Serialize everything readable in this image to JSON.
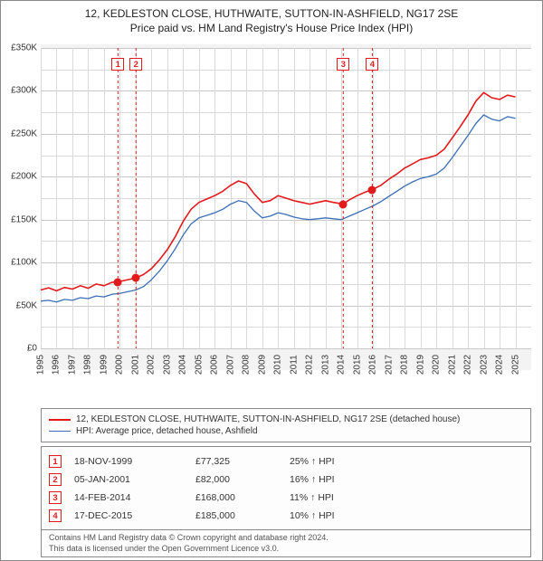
{
  "title": {
    "line1": "12, KEDLESTON CLOSE, HUTHWAITE, SUTTON-IN-ASHFIELD, NG17 2SE",
    "line2": "Price paid vs. HM Land Registry's House Price Index (HPI)",
    "fontsize": 12,
    "color": "#222222"
  },
  "chart": {
    "type": "line",
    "background_color": "#ffffff",
    "plot_margin_color": "#f3f3f3",
    "grid_color": "#dadada",
    "grid_major_color": "#c8c8c8",
    "x_axis": {
      "min_year": 1995,
      "max_year": 2026,
      "ticks": [
        1995,
        1996,
        1997,
        1998,
        1999,
        2000,
        2001,
        2002,
        2003,
        2004,
        2005,
        2006,
        2007,
        2008,
        2009,
        2010,
        2011,
        2012,
        2013,
        2014,
        2015,
        2016,
        2017,
        2018,
        2019,
        2020,
        2021,
        2022,
        2023,
        2024,
        2025
      ],
      "label_fontsize": 10,
      "label_color": "#333333"
    },
    "y_axis": {
      "min": 0,
      "max": 350000,
      "ticks": [
        0,
        50000,
        100000,
        150000,
        200000,
        250000,
        300000,
        350000
      ],
      "tick_labels": [
        "£0",
        "£50K",
        "£100K",
        "£150K",
        "£200K",
        "£250K",
        "£300K",
        "£350K"
      ],
      "label_fontsize": 10,
      "label_color": "#333333"
    },
    "series": [
      {
        "name": "price_paid",
        "color": "#e31a1c",
        "width": 1.6,
        "points": [
          [
            1995.0,
            68000
          ],
          [
            1995.5,
            70500
          ],
          [
            1996.0,
            67000
          ],
          [
            1996.5,
            71000
          ],
          [
            1997.0,
            69000
          ],
          [
            1997.5,
            73000
          ],
          [
            1998.0,
            70000
          ],
          [
            1998.5,
            75000
          ],
          [
            1999.0,
            73000
          ],
          [
            1999.5,
            77000
          ],
          [
            1999.88,
            77325
          ],
          [
            2000.0,
            78000
          ],
          [
            2000.5,
            80000
          ],
          [
            2001.02,
            82000
          ],
          [
            2001.5,
            86000
          ],
          [
            2002.0,
            93000
          ],
          [
            2002.5,
            103000
          ],
          [
            2003.0,
            115000
          ],
          [
            2003.5,
            130000
          ],
          [
            2004.0,
            148000
          ],
          [
            2004.5,
            162000
          ],
          [
            2005.0,
            170000
          ],
          [
            2005.5,
            174000
          ],
          [
            2006.0,
            178000
          ],
          [
            2006.5,
            183000
          ],
          [
            2007.0,
            190000
          ],
          [
            2007.5,
            195000
          ],
          [
            2008.0,
            192000
          ],
          [
            2008.5,
            180000
          ],
          [
            2009.0,
            170000
          ],
          [
            2009.5,
            172000
          ],
          [
            2010.0,
            178000
          ],
          [
            2010.5,
            175000
          ],
          [
            2011.0,
            172000
          ],
          [
            2011.5,
            170000
          ],
          [
            2012.0,
            168000
          ],
          [
            2012.5,
            170000
          ],
          [
            2013.0,
            172000
          ],
          [
            2013.5,
            170000
          ],
          [
            2014.12,
            168000
          ],
          [
            2014.5,
            173000
          ],
          [
            2015.0,
            178000
          ],
          [
            2015.5,
            182000
          ],
          [
            2015.96,
            185000
          ],
          [
            2016.5,
            190000
          ],
          [
            2017.0,
            197000
          ],
          [
            2017.5,
            203000
          ],
          [
            2018.0,
            210000
          ],
          [
            2018.5,
            215000
          ],
          [
            2019.0,
            220000
          ],
          [
            2019.5,
            222000
          ],
          [
            2020.0,
            225000
          ],
          [
            2020.5,
            232000
          ],
          [
            2021.0,
            245000
          ],
          [
            2021.5,
            258000
          ],
          [
            2022.0,
            272000
          ],
          [
            2022.5,
            288000
          ],
          [
            2023.0,
            298000
          ],
          [
            2023.5,
            292000
          ],
          [
            2024.0,
            290000
          ],
          [
            2024.5,
            295000
          ],
          [
            2025.0,
            293000
          ]
        ]
      },
      {
        "name": "hpi",
        "color": "#3b6fb6",
        "width": 1.3,
        "points": [
          [
            1995.0,
            55000
          ],
          [
            1995.5,
            56000
          ],
          [
            1996.0,
            54000
          ],
          [
            1996.5,
            57000
          ],
          [
            1997.0,
            56000
          ],
          [
            1997.5,
            59000
          ],
          [
            1998.0,
            58000
          ],
          [
            1998.5,
            61000
          ],
          [
            1999.0,
            60000
          ],
          [
            1999.5,
            63000
          ],
          [
            2000.0,
            64000
          ],
          [
            2000.5,
            66000
          ],
          [
            2001.0,
            68000
          ],
          [
            2001.5,
            72000
          ],
          [
            2002.0,
            80000
          ],
          [
            2002.5,
            90000
          ],
          [
            2003.0,
            102000
          ],
          [
            2003.5,
            116000
          ],
          [
            2004.0,
            132000
          ],
          [
            2004.5,
            145000
          ],
          [
            2005.0,
            152000
          ],
          [
            2005.5,
            155000
          ],
          [
            2006.0,
            158000
          ],
          [
            2006.5,
            162000
          ],
          [
            2007.0,
            168000
          ],
          [
            2007.5,
            172000
          ],
          [
            2008.0,
            170000
          ],
          [
            2008.5,
            160000
          ],
          [
            2009.0,
            152000
          ],
          [
            2009.5,
            154000
          ],
          [
            2010.0,
            158000
          ],
          [
            2010.5,
            156000
          ],
          [
            2011.0,
            153000
          ],
          [
            2011.5,
            151000
          ],
          [
            2012.0,
            150000
          ],
          [
            2012.5,
            151000
          ],
          [
            2013.0,
            152000
          ],
          [
            2013.5,
            151000
          ],
          [
            2014.0,
            150000
          ],
          [
            2014.5,
            154000
          ],
          [
            2015.0,
            158000
          ],
          [
            2015.5,
            162000
          ],
          [
            2016.0,
            166000
          ],
          [
            2016.5,
            171000
          ],
          [
            2017.0,
            177000
          ],
          [
            2017.5,
            183000
          ],
          [
            2018.0,
            189000
          ],
          [
            2018.5,
            194000
          ],
          [
            2019.0,
            198000
          ],
          [
            2019.5,
            200000
          ],
          [
            2020.0,
            203000
          ],
          [
            2020.5,
            210000
          ],
          [
            2021.0,
            222000
          ],
          [
            2021.5,
            235000
          ],
          [
            2022.0,
            248000
          ],
          [
            2022.5,
            262000
          ],
          [
            2023.0,
            272000
          ],
          [
            2023.5,
            267000
          ],
          [
            2024.0,
            265000
          ],
          [
            2024.5,
            270000
          ],
          [
            2025.0,
            268000
          ]
        ]
      }
    ],
    "markers": [
      {
        "year": 1999.88,
        "value": 77325,
        "color": "#e31a1c"
      },
      {
        "year": 2001.02,
        "value": 82000,
        "color": "#e31a1c"
      },
      {
        "year": 2014.12,
        "value": 168000,
        "color": "#e31a1c"
      },
      {
        "year": 2015.96,
        "value": 185000,
        "color": "#e31a1c"
      }
    ],
    "callouts": [
      {
        "label": "1",
        "year": 1999.88
      },
      {
        "label": "2",
        "year": 2001.02
      },
      {
        "label": "3",
        "year": 2014.12
      },
      {
        "label": "4",
        "year": 2015.96
      }
    ],
    "callout_color": "#e31a1c",
    "callout_y_offset": 18
  },
  "legend": {
    "border_color": "#888888",
    "background": "#fdfdfd",
    "fontsize": 10,
    "items": [
      {
        "color": "#e31a1c",
        "width": 2,
        "label": "12, KEDLESTON CLOSE, HUTHWAITE, SUTTON-IN-ASHFIELD, NG17 2SE (detached house)"
      },
      {
        "color": "#3b6fb6",
        "width": 1.5,
        "label": "HPI: Average price, detached house, Ashfield"
      }
    ]
  },
  "transactions": {
    "border_color": "#888888",
    "callout_color": "#e31a1c",
    "fontsize": 10.5,
    "rows": [
      {
        "n": "1",
        "date": "18-NOV-1999",
        "price": "£77,325",
        "pct": "25% ↑ HPI"
      },
      {
        "n": "2",
        "date": "05-JAN-2001",
        "price": "£82,000",
        "pct": "16% ↑ HPI"
      },
      {
        "n": "3",
        "date": "14-FEB-2014",
        "price": "£168,000",
        "pct": "11% ↑ HPI"
      },
      {
        "n": "4",
        "date": "17-DEC-2015",
        "price": "£185,000",
        "pct": "10% ↑ HPI"
      }
    ]
  },
  "footer": {
    "line1": "Contains HM Land Registry data © Crown copyright and database right 2024.",
    "line2": "This data is licensed under the Open Government Licence v3.0.",
    "fontsize": 9,
    "color": "#555555"
  }
}
